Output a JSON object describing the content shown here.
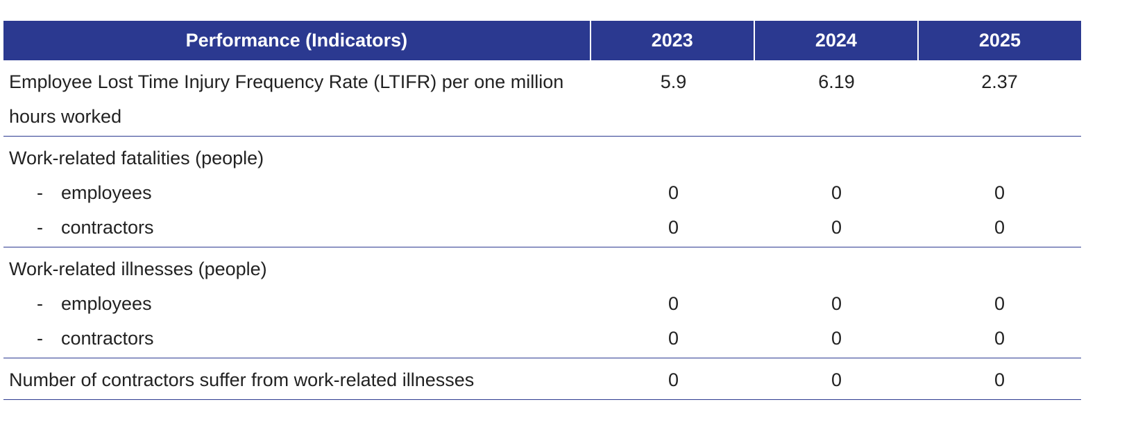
{
  "table": {
    "header": [
      "Performance (Indicators)",
      "2023",
      "2024",
      "2025"
    ],
    "groups": [
      {
        "label": "Employee Lost Time Injury Frequency Rate (LTIFR) per one million hours worked",
        "values": [
          5.9,
          6.19,
          2.37
        ]
      },
      {
        "label": "Work-related fatalities (people)",
        "items": [
          {
            "bullet": "-",
            "label": "employees",
            "values": [
              0,
              0,
              0
            ]
          },
          {
            "bullet": "-",
            "label": "contractors",
            "values": [
              0,
              0,
              0
            ]
          }
        ]
      },
      {
        "label": "Work-related illnesses (people)",
        "items": [
          {
            "bullet": "-",
            "label": "employees",
            "values": [
              0,
              0,
              0
            ]
          },
          {
            "bullet": "-",
            "label": "contractors",
            "values": [
              0,
              0,
              0
            ]
          }
        ]
      },
      {
        "label": "Number of contractors suffer from work-related illnesses",
        "values": [
          0,
          0,
          0
        ]
      }
    ]
  }
}
